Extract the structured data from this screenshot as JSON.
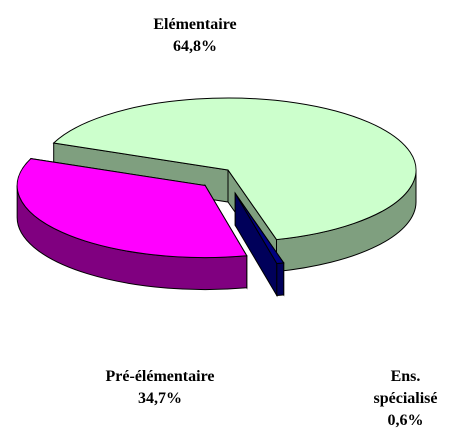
{
  "chart_data": {
    "type": "pie3d",
    "categories": [
      "Elémentaire",
      "Ens. spécialisé",
      "Pré-élémentaire"
    ],
    "values": [
      64.8,
      0.6,
      34.7
    ],
    "value_labels": [
      "64,8%",
      "0,6%",
      "34,7%"
    ],
    "colors": [
      "#ccffcc",
      "#000080",
      "#ff00ff"
    ],
    "side_colors": [
      "#7f9f7f",
      "#00005a",
      "#800080"
    ],
    "exploded": [
      false,
      true,
      true
    ]
  }
}
